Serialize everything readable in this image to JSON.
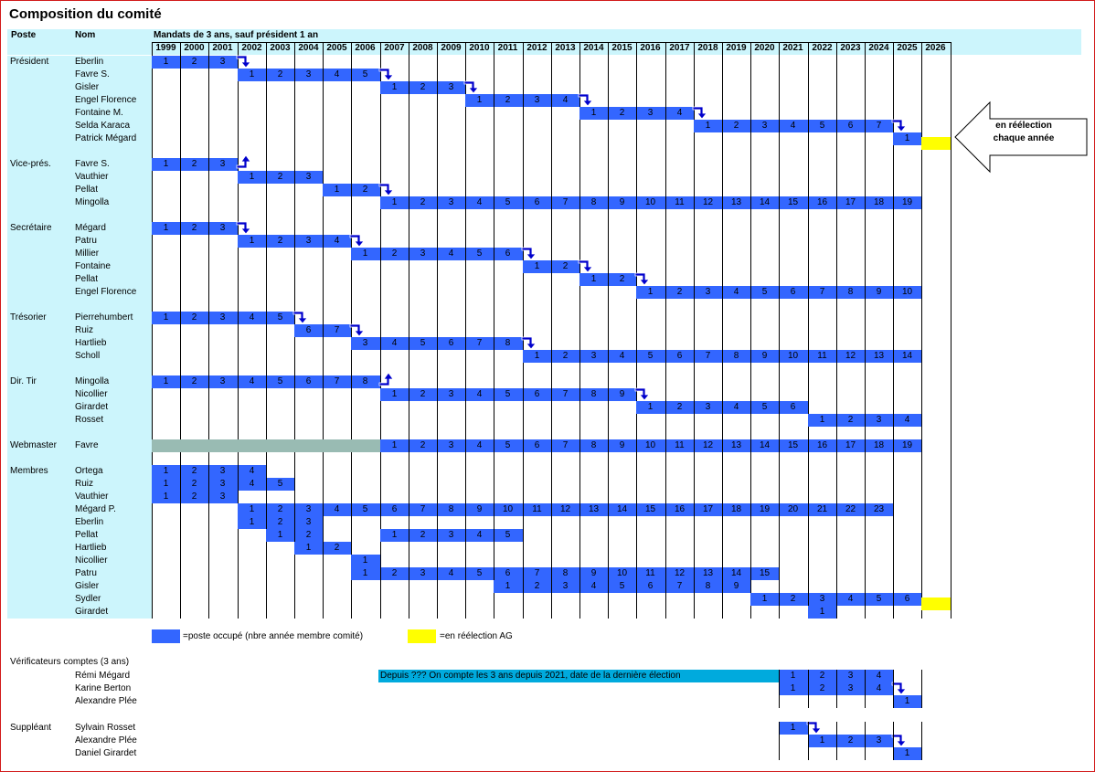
{
  "title": "Composition du comité",
  "headers": {
    "poste": "Poste",
    "nom": "Nom",
    "mandats": "Mandats de 3 ans, sauf président 1 an"
  },
  "years": [
    "1999",
    "2000",
    "2001",
    "2002",
    "2003",
    "2004",
    "2005",
    "2006",
    "2007",
    "2008",
    "2009",
    "2010",
    "2011",
    "2012",
    "2013",
    "2014",
    "2015",
    "2016",
    "2017",
    "2018",
    "2019",
    "2020",
    "2021",
    "2022",
    "2023",
    "2024",
    "2025",
    "2026"
  ],
  "colors": {
    "occupied": "#3366ff",
    "reelection": "#ffff00",
    "header_band": "#ccf5fc",
    "unknown_period": "#99bbb3",
    "note_bar": "#00aadd",
    "arrow": "#0000cc",
    "frame": "#d21a1a"
  },
  "reelection_callout": "en réélection chaque année",
  "legend": {
    "occupied_label": "=poste occupé (nbre année membre comité)",
    "reelection_label": "=en réélection AG"
  },
  "note": "Depuis ??? On compte les 3 ans depuis 2021, date de la dernière élection",
  "rows": [
    {
      "poste": "Président",
      "nom": "Eberlin",
      "start": 0,
      "len": 3,
      "num_start": 1,
      "arrow": "down"
    },
    {
      "poste": "",
      "nom": "Favre S.",
      "start": 3,
      "len": 5,
      "num_start": 1,
      "arrow": "down"
    },
    {
      "poste": "",
      "nom": "Gisler",
      "start": 8,
      "len": 3,
      "num_start": 1,
      "arrow": "down"
    },
    {
      "poste": "",
      "nom": "Engel Florence",
      "start": 11,
      "len": 4,
      "num_start": 1,
      "arrow": "down"
    },
    {
      "poste": "",
      "nom": "Fontaine M.",
      "start": 15,
      "len": 4,
      "num_start": 1,
      "arrow": "down"
    },
    {
      "poste": "",
      "nom": "Selda Karaca",
      "start": 19,
      "len": 7,
      "num_start": 1,
      "arrow": "down"
    },
    {
      "poste": "",
      "nom": "Patrick Mégard",
      "start": 26,
      "len": 1,
      "num_start": 1,
      "yellow": 27
    },
    {
      "gap": true
    },
    {
      "poste": "Vice-prés.",
      "nom": "Favre S.",
      "start": 0,
      "len": 3,
      "num_start": 1,
      "arrow": "up"
    },
    {
      "poste": "",
      "nom": "Vauthier",
      "start": 3,
      "len": 3,
      "num_start": 1
    },
    {
      "poste": "",
      "nom": "Pellat",
      "start": 6,
      "len": 2,
      "num_start": 1,
      "arrow": "down"
    },
    {
      "poste": "",
      "nom": "Mingolla",
      "start": 8,
      "len": 19,
      "num_start": 1
    },
    {
      "gap": true
    },
    {
      "poste": "Secrétaire",
      "nom": "Mégard",
      "start": 0,
      "len": 3,
      "num_start": 1,
      "arrow": "down"
    },
    {
      "poste": "",
      "nom": "Patru",
      "start": 3,
      "len": 4,
      "num_start": 1,
      "arrow": "down"
    },
    {
      "poste": "",
      "nom": "Millier",
      "start": 7,
      "len": 6,
      "num_start": 1,
      "arrow": "down"
    },
    {
      "poste": "",
      "nom": "Fontaine",
      "start": 13,
      "len": 2,
      "num_start": 1,
      "arrow": "down"
    },
    {
      "poste": "",
      "nom": "Pellat",
      "start": 15,
      "len": 2,
      "num_start": 1,
      "arrow": "down"
    },
    {
      "poste": "",
      "nom": "Engel Florence",
      "start": 17,
      "len": 10,
      "num_start": 1
    },
    {
      "gap": true
    },
    {
      "poste": "Trésorier",
      "nom": "Pierrehumbert",
      "start": 0,
      "len": 5,
      "num_start": 1,
      "arrow": "down"
    },
    {
      "poste": "",
      "nom": "Ruiz",
      "start": 5,
      "len": 2,
      "num_start": 6,
      "arrow": "down"
    },
    {
      "poste": "",
      "nom": "Hartlieb",
      "start": 7,
      "len": 6,
      "num_start": 3,
      "arrow": "down"
    },
    {
      "poste": "",
      "nom": "Scholl",
      "start": 13,
      "len": 14,
      "num_start": 1
    },
    {
      "gap": true
    },
    {
      "poste": "Dir. Tir",
      "nom": "Mingolla",
      "start": 0,
      "len": 8,
      "num_start": 1,
      "arrow": "up"
    },
    {
      "poste": "",
      "nom": "Nicollier",
      "start": 8,
      "len": 9,
      "num_start": 1,
      "arrow": "down"
    },
    {
      "poste": "",
      "nom": "Girardet",
      "start": 17,
      "len": 6,
      "num_start": 1
    },
    {
      "poste": "",
      "nom": "Rosset",
      "start": 23,
      "len": 4,
      "num_start": 1
    },
    {
      "gap": true
    },
    {
      "poste": "Webmaster",
      "nom": "Favre",
      "gray": [
        0,
        8
      ],
      "start": 8,
      "len": 19,
      "num_start": 1
    },
    {
      "gap": true
    },
    {
      "poste": "Membres",
      "nom": "Ortega",
      "start": 0,
      "len": 4,
      "num_start": 1
    },
    {
      "poste": "",
      "nom": "Ruiz",
      "start": 0,
      "len": 5,
      "num_start": 1
    },
    {
      "poste": "",
      "nom": "Vauthier",
      "start": 0,
      "len": 3,
      "num_start": 1
    },
    {
      "poste": "",
      "nom": "Mégard P.",
      "start": 3,
      "len": 23,
      "num_start": 1
    },
    {
      "poste": "",
      "nom": "Eberlin",
      "start": 3,
      "len": 3,
      "num_start": 1
    },
    {
      "poste": "",
      "nom": "Pellat",
      "start": 4,
      "len": 2,
      "num_start": 1,
      "start2": 8,
      "len2": 5,
      "num_start2": 1
    },
    {
      "poste": "",
      "nom": "Hartlieb",
      "start": 5,
      "len": 2,
      "num_start": 1
    },
    {
      "poste": "",
      "nom": "Nicollier",
      "start": 7,
      "len": 1,
      "num_start": 1
    },
    {
      "poste": "",
      "nom": "Patru",
      "start": 7,
      "len": 15,
      "num_start": 1
    },
    {
      "poste": "",
      "nom": "Gisler",
      "start": 12,
      "len": 9,
      "num_start": 1
    },
    {
      "poste": "",
      "nom": "Sydler",
      "start": 21,
      "len": 6,
      "num_start": 1,
      "yellow": 27
    },
    {
      "poste": "",
      "nom": "Girardet",
      "start": 23,
      "len": 1,
      "num_start": 1
    }
  ],
  "verif": {
    "label": "Vérificateurs comptes (3 ans)",
    "rows": [
      {
        "nom": "Rémi Mégard",
        "start": 22,
        "len": 4,
        "num_start": 1,
        "note": true
      },
      {
        "nom": "Karine Berton",
        "start": 22,
        "len": 4,
        "num_start": 1,
        "arrow": "down"
      },
      {
        "nom": "Alexandre Plée",
        "start": 26,
        "len": 1,
        "num_start": 1
      }
    ]
  },
  "suppl": {
    "label": "Suppléant",
    "rows": [
      {
        "nom": "Sylvain Rosset",
        "start": 22,
        "len": 1,
        "num_start": 1,
        "arrow": "down"
      },
      {
        "nom": "Alexandre Plée",
        "start": 23,
        "len": 3,
        "num_start": 1,
        "arrow": "down"
      },
      {
        "nom": "Daniel Girardet",
        "start": 26,
        "len": 1,
        "num_start": 1
      }
    ]
  }
}
